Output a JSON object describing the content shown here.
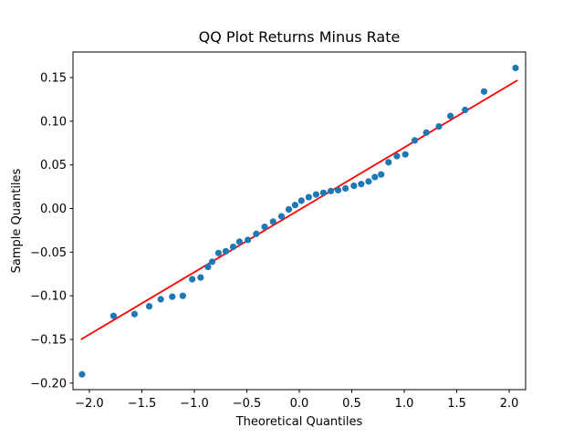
{
  "chart_data": {
    "type": "scatter",
    "title": "QQ Plot Returns Minus Rate",
    "xlabel": "Theoretical Quantiles",
    "ylabel": "Sample Quantiles",
    "xlim": [
      -2.156,
      2.156
    ],
    "ylim": [
      -0.2075,
      0.1793
    ],
    "grid": false,
    "legend_position": "none",
    "marker_color": "#1f77b4",
    "line_color": "#ff0000",
    "background_color": "#ffffff",
    "x_ticks": [
      {
        "value": -2.0,
        "label": "−2.0"
      },
      {
        "value": -1.5,
        "label": "−1.5"
      },
      {
        "value": -1.0,
        "label": "−1.0"
      },
      {
        "value": -0.5,
        "label": "−0.5"
      },
      {
        "value": 0.0,
        "label": "0.0"
      },
      {
        "value": 0.5,
        "label": "0.5"
      },
      {
        "value": 1.0,
        "label": "1.0"
      },
      {
        "value": 1.5,
        "label": "1.5"
      },
      {
        "value": 2.0,
        "label": "2.0"
      }
    ],
    "y_ticks": [
      {
        "value": -0.2,
        "label": "−0.20"
      },
      {
        "value": -0.15,
        "label": "−0.15"
      },
      {
        "value": -0.1,
        "label": "−0.10"
      },
      {
        "value": -0.05,
        "label": "−0.05"
      },
      {
        "value": 0.0,
        "label": "0.00"
      },
      {
        "value": 0.05,
        "label": "0.05"
      },
      {
        "value": 0.1,
        "label": "0.10"
      },
      {
        "value": 0.15,
        "label": "0.15"
      }
    ],
    "points": [
      [
        -2.07,
        -0.19
      ],
      [
        -1.77,
        -0.123
      ],
      [
        -1.57,
        -0.121
      ],
      [
        -1.43,
        -0.112
      ],
      [
        -1.32,
        -0.104
      ],
      [
        -1.21,
        -0.101
      ],
      [
        -1.11,
        -0.1
      ],
      [
        -1.02,
        -0.081
      ],
      [
        -0.94,
        -0.079
      ],
      [
        -0.87,
        -0.067
      ],
      [
        -0.83,
        -0.061
      ],
      [
        -0.77,
        -0.051
      ],
      [
        -0.7,
        -0.049
      ],
      [
        -0.63,
        -0.044
      ],
      [
        -0.57,
        -0.038
      ],
      [
        -0.49,
        -0.036
      ],
      [
        -0.41,
        -0.029
      ],
      [
        -0.33,
        -0.021
      ],
      [
        -0.25,
        -0.015
      ],
      [
        -0.17,
        -0.009
      ],
      [
        -0.1,
        -0.001
      ],
      [
        -0.04,
        0.004
      ],
      [
        0.02,
        0.009
      ],
      [
        0.09,
        0.013
      ],
      [
        0.16,
        0.016
      ],
      [
        0.23,
        0.018
      ],
      [
        0.3,
        0.02
      ],
      [
        0.37,
        0.021
      ],
      [
        0.44,
        0.023
      ],
      [
        0.52,
        0.026
      ],
      [
        0.59,
        0.028
      ],
      [
        0.66,
        0.031
      ],
      [
        0.72,
        0.036
      ],
      [
        0.78,
        0.039
      ],
      [
        0.85,
        0.053
      ],
      [
        0.93,
        0.06
      ],
      [
        1.01,
        0.062
      ],
      [
        1.1,
        0.078
      ],
      [
        1.21,
        0.087
      ],
      [
        1.33,
        0.094
      ],
      [
        1.44,
        0.106
      ],
      [
        1.58,
        0.113
      ],
      [
        1.76,
        0.134
      ],
      [
        2.06,
        0.161
      ]
    ],
    "fit_line": {
      "x1": -2.08,
      "y1": -0.15,
      "x2": 2.08,
      "y2": 0.147
    }
  }
}
